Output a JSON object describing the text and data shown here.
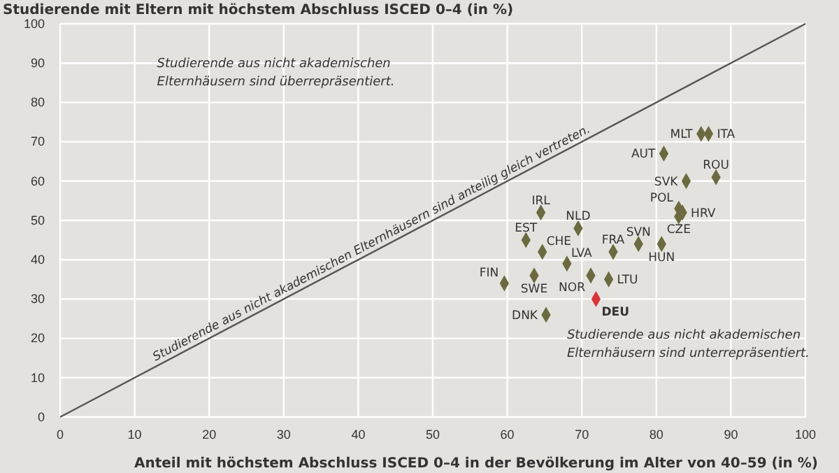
{
  "chart_data": {
    "type": "scatter",
    "title": "Studierende mit Eltern mit höchstem Abschluss ISCED 0–4 (in %)",
    "xlabel": "Anteil mit höchstem Abschluss ISCED 0–4 in der Bevölkerung im Alter von 40–59 (in %)",
    "xlim": [
      0,
      100
    ],
    "ylim": [
      0,
      100
    ],
    "xticks": [
      0,
      10,
      20,
      30,
      40,
      50,
      60,
      70,
      80,
      90,
      100
    ],
    "yticks": [
      0,
      10,
      20,
      30,
      40,
      50,
      60,
      70,
      80,
      90,
      100
    ],
    "grid": true,
    "series": [
      {
        "marker": "diamond",
        "x": [
          86,
          87,
          81,
          88,
          84,
          83,
          83.5,
          83,
          64.5,
          69.5,
          62.5,
          64.7,
          74.2,
          77.6,
          80.7,
          68,
          59.6,
          63.6,
          71.2,
          73.6,
          71.9,
          65.2
        ],
        "values": [
          72,
          72,
          67,
          61,
          60,
          53,
          52,
          51,
          52,
          48,
          45,
          42,
          42,
          44,
          44,
          39,
          34,
          36,
          36,
          35,
          30,
          26
        ],
        "colors": [
          "#6b6a40",
          "#6b6a40",
          "#6b6a40",
          "#6b6a40",
          "#6b6a40",
          "#6b6a40",
          "#6b6a40",
          "#6b6a40",
          "#6b6a40",
          "#6b6a40",
          "#6b6a40",
          "#6b6a40",
          "#6b6a40",
          "#6b6a40",
          "#6b6a40",
          "#6b6a40",
          "#6b6a40",
          "#6b6a40",
          "#6b6a40",
          "#6b6a40",
          "#d9343a",
          "#6b6a40"
        ]
      },
      {
        "type": "line",
        "x": [
          0,
          100
        ],
        "values": [
          0,
          100
        ],
        "color": "#555555",
        "marker": "none"
      }
    ],
    "annotations": [
      "Studierende aus nicht akademischen Elternhäusern sind überrepräsentiert.",
      "Studierende aus nicht akademischen Elternhäusern sind unterrepräsentiert.",
      {
        "text": "Studierende aus nicht akademischen Elternhäusern sind anteilig gleich vertreten.",
        "x": 42,
        "y": 42
      },
      {
        "text": "MLT",
        "x": 86,
        "y": 72
      },
      {
        "text": "ITA",
        "x": 87,
        "y": 72
      },
      {
        "text": "AUT",
        "x": 81,
        "y": 67
      },
      {
        "text": "ROU",
        "x": 88,
        "y": 61
      },
      {
        "text": "SVK",
        "x": 84,
        "y": 60
      },
      {
        "text": "POL",
        "x": 83,
        "y": 53
      },
      {
        "text": "HRV",
        "x": 83.5,
        "y": 52
      },
      {
        "text": "CZE",
        "x": 83,
        "y": 51
      },
      {
        "text": "IRL",
        "x": 64.5,
        "y": 52
      },
      {
        "text": "NLD",
        "x": 69.5,
        "y": 48
      },
      {
        "text": "EST",
        "x": 62.5,
        "y": 45
      },
      {
        "text": "CHE",
        "x": 64.7,
        "y": 42
      },
      {
        "text": "FRA",
        "x": 74.2,
        "y": 42
      },
      {
        "text": "SVN",
        "x": 77.6,
        "y": 44
      },
      {
        "text": "HUN",
        "x": 80.7,
        "y": 44
      },
      {
        "text": "LVA",
        "x": 68,
        "y": 39
      },
      {
        "text": "FIN",
        "x": 59.6,
        "y": 34
      },
      {
        "text": "SWE",
        "x": 63.6,
        "y": 36
      },
      {
        "text": "NOR",
        "x": 71.2,
        "y": 36
      },
      {
        "text": "LTU",
        "x": 73.6,
        "y": 35
      },
      {
        "text": "DEU",
        "x": 71.9,
        "y": 30
      },
      {
        "text": "DNK",
        "x": 65.2,
        "y": 26
      }
    ]
  }
}
